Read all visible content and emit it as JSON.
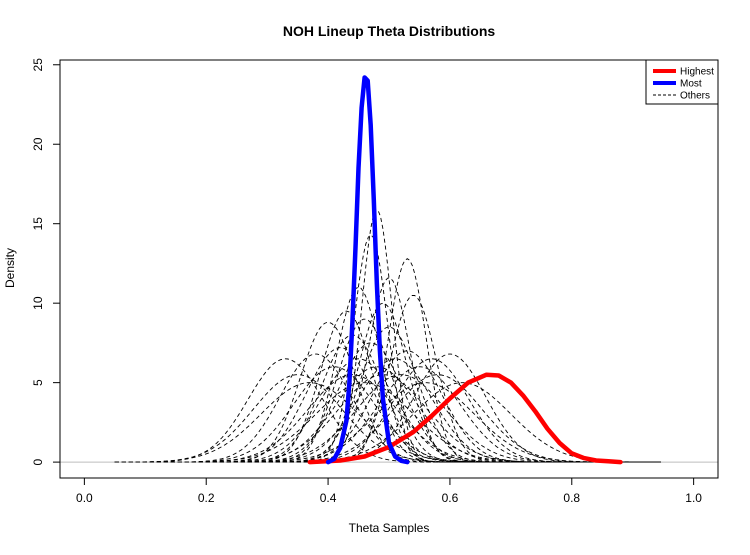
{
  "chart_data": {
    "type": "line",
    "title": "NOH Lineup Theta Distributions",
    "xlabel": "Theta Samples",
    "ylabel": "Density",
    "xlim": [
      -0.04,
      1.04
    ],
    "ylim": [
      -1.0,
      25.3
    ],
    "x_ticks": [
      "0.0",
      "0.2",
      "0.4",
      "0.6",
      "0.8",
      "1.0"
    ],
    "y_ticks": [
      "0",
      "5",
      "10",
      "15",
      "20",
      "25"
    ],
    "grid": false,
    "baseline": 0,
    "legend": {
      "placement": "top-right",
      "entries": [
        "Highest",
        "Most",
        "Others"
      ]
    },
    "colors": {
      "highest": "#ff0000",
      "most": "#0000ff",
      "others": "#000000",
      "baseline": "#bebebe"
    },
    "series": [
      {
        "name": "Highest",
        "style": "solid-thick",
        "x": [
          0.37,
          0.42,
          0.46,
          0.5,
          0.54,
          0.57,
          0.6,
          0.63,
          0.66,
          0.68,
          0.7,
          0.72,
          0.74,
          0.76,
          0.78,
          0.8,
          0.82,
          0.84,
          0.86,
          0.88
        ],
        "y": [
          0.0,
          0.1,
          0.35,
          0.95,
          1.9,
          2.9,
          4.0,
          5.0,
          5.5,
          5.45,
          5.0,
          4.2,
          3.2,
          2.1,
          1.2,
          0.55,
          0.25,
          0.1,
          0.05,
          0.0
        ]
      },
      {
        "name": "Most",
        "style": "solid-thick",
        "x": [
          0.4,
          0.41,
          0.42,
          0.43,
          0.435,
          0.44,
          0.445,
          0.45,
          0.455,
          0.46,
          0.465,
          0.47,
          0.475,
          0.48,
          0.485,
          0.49,
          0.5,
          0.51,
          0.52,
          0.53
        ],
        "y": [
          0.0,
          0.2,
          0.9,
          2.6,
          5.0,
          8.8,
          13.5,
          18.5,
          22.3,
          24.2,
          24.0,
          21.2,
          16.5,
          11.3,
          7.0,
          4.0,
          1.2,
          0.35,
          0.08,
          0.0
        ]
      },
      {
        "name": "",
        "style": "dashed",
        "mu": 0.33,
        "peak": 6.5
      },
      {
        "name": "",
        "style": "dashed",
        "mu": 0.35,
        "peak": 5.5
      },
      {
        "name": "",
        "style": "dashed",
        "mu": 0.37,
        "peak": 5.0
      },
      {
        "name": "",
        "style": "dashed",
        "mu": 0.38,
        "peak": 6.8
      },
      {
        "name": "",
        "style": "dashed",
        "mu": 0.4,
        "peak": 8.8
      },
      {
        "name": "",
        "style": "dashed",
        "mu": 0.41,
        "peak": 6.0
      },
      {
        "name": "",
        "style": "dashed",
        "mu": 0.42,
        "peak": 7.2
      },
      {
        "name": "",
        "style": "dashed",
        "mu": 0.43,
        "peak": 9.5
      },
      {
        "name": "",
        "style": "dashed",
        "mu": 0.44,
        "peak": 5.5
      },
      {
        "name": "",
        "style": "dashed",
        "mu": 0.44,
        "peak": 8.0
      },
      {
        "name": "",
        "style": "dashed",
        "mu": 0.45,
        "peak": 6.5
      },
      {
        "name": "",
        "style": "dashed",
        "mu": 0.45,
        "peak": 11.0
      },
      {
        "name": "",
        "style": "dashed",
        "mu": 0.46,
        "peak": 5.0
      },
      {
        "name": "",
        "style": "dashed",
        "mu": 0.46,
        "peak": 9.0
      },
      {
        "name": "",
        "style": "dashed",
        "mu": 0.47,
        "peak": 7.5
      },
      {
        "name": "",
        "style": "dashed",
        "mu": 0.47,
        "peak": 14.3
      },
      {
        "name": "",
        "style": "dashed",
        "mu": 0.48,
        "peak": 15.9
      },
      {
        "name": "",
        "style": "dashed",
        "mu": 0.48,
        "peak": 6.0
      },
      {
        "name": "",
        "style": "dashed",
        "mu": 0.49,
        "peak": 10.0
      },
      {
        "name": "",
        "style": "dashed",
        "mu": 0.49,
        "peak": 5.5
      },
      {
        "name": "",
        "style": "dashed",
        "mu": 0.5,
        "peak": 8.5
      },
      {
        "name": "",
        "style": "dashed",
        "mu": 0.5,
        "peak": 11.6
      },
      {
        "name": "",
        "style": "dashed",
        "mu": 0.51,
        "peak": 6.5
      },
      {
        "name": "",
        "style": "dashed",
        "mu": 0.52,
        "peak": 5.5
      },
      {
        "name": "",
        "style": "dashed",
        "mu": 0.53,
        "peak": 12.8
      },
      {
        "name": "",
        "style": "dashed",
        "mu": 0.53,
        "peak": 7.0
      },
      {
        "name": "",
        "style": "dashed",
        "mu": 0.54,
        "peak": 10.5
      },
      {
        "name": "",
        "style": "dashed",
        "mu": 0.55,
        "peak": 6.0
      },
      {
        "name": "",
        "style": "dashed",
        "mu": 0.56,
        "peak": 5.0
      },
      {
        "name": "",
        "style": "dashed",
        "mu": 0.57,
        "peak": 6.5
      },
      {
        "name": "",
        "style": "dashed",
        "mu": 0.58,
        "peak": 5.5
      },
      {
        "name": "",
        "style": "dashed",
        "mu": 0.6,
        "peak": 6.8
      },
      {
        "name": "",
        "style": "dashed",
        "mu": 0.62,
        "peak": 5.0
      }
    ]
  }
}
